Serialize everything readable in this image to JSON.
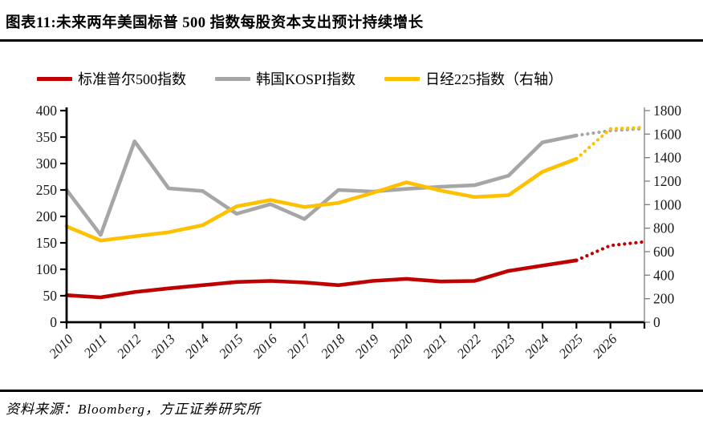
{
  "header": {
    "title": "图表11:未来两年美国标普 500 指数每股资本支出预计持续增长"
  },
  "footer": {
    "source": "资料来源：Bloomberg，方正证券研究所"
  },
  "colors": {
    "sp500": "#C00000",
    "kospi": "#A6A6A6",
    "nikkei": "#FFC000",
    "axis": "#000000",
    "right_axis_line": "#7f7f7f"
  },
  "chart_data": {
    "type": "line",
    "title": "未来两年美国标普500指数每股资本支出预计持续增长",
    "x": [
      2010,
      2011,
      2012,
      2013,
      2014,
      2015,
      2016,
      2017,
      2018,
      2019,
      2020,
      2021,
      2022,
      2023,
      2024,
      2025,
      2026,
      2027
    ],
    "x_tick_labels": [
      "2010",
      "2011",
      "2012",
      "2013",
      "2014",
      "2015",
      "2016",
      "2017",
      "2018",
      "2019",
      "2020",
      "2021",
      "2022",
      "2023",
      "2024",
      "2025",
      "2026"
    ],
    "forecast_start_index": 15,
    "forecast_style": "dotted",
    "grid": false,
    "legend_position": "top",
    "left_axis": {
      "min": 0,
      "max": 400,
      "ticks": [
        0,
        50,
        100,
        150,
        200,
        250,
        300,
        350,
        400
      ]
    },
    "right_axis": {
      "min": 0,
      "max": 1800,
      "ticks": [
        0,
        200,
        400,
        600,
        800,
        1000,
        1200,
        1400,
        1600,
        1800
      ]
    },
    "series": [
      {
        "name": "标准普尔500指数",
        "axis": "left",
        "color": "#C00000",
        "values": [
          51,
          47,
          57,
          64,
          70,
          76,
          78,
          75,
          70,
          78,
          82,
          77,
          78,
          97,
          107,
          117,
          145,
          152
        ]
      },
      {
        "name": "韩国KOSPI指数",
        "axis": "left",
        "color": "#A6A6A6",
        "values": [
          250,
          165,
          342,
          253,
          248,
          205,
          223,
          195,
          250,
          247,
          252,
          256,
          259,
          277,
          340,
          353,
          362,
          366
        ]
      },
      {
        "name": "日经225指数（右轴）",
        "axis": "right",
        "color": "#FFC000",
        "values": [
          815,
          695,
          730,
          765,
          825,
          985,
          1040,
          980,
          1015,
          1100,
          1190,
          1120,
          1065,
          1080,
          1280,
          1390,
          1645,
          1657
        ]
      }
    ]
  }
}
